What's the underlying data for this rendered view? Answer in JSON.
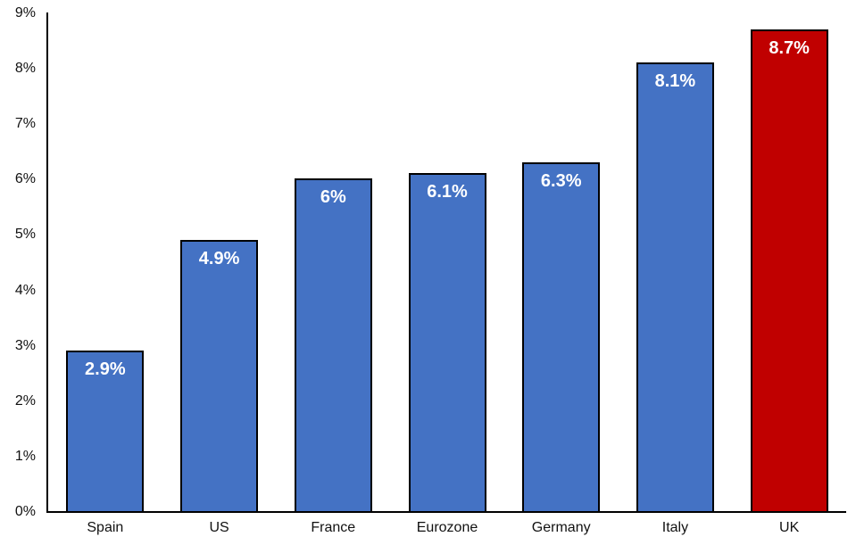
{
  "chart_data": {
    "type": "bar",
    "title": "",
    "xlabel": "",
    "ylabel": "",
    "categories": [
      "Spain",
      "US",
      "France",
      "Eurozone",
      "Germany",
      "Italy",
      "UK"
    ],
    "values": [
      2.9,
      4.9,
      6.0,
      6.1,
      6.3,
      8.1,
      8.7
    ],
    "data_labels": [
      "2.9%",
      "4.9%",
      "6%",
      "6.1%",
      "6.3%",
      "8.1%",
      "8.7%"
    ],
    "bar_colors": [
      "#4472C4",
      "#4472C4",
      "#4472C4",
      "#4472C4",
      "#4472C4",
      "#4472C4",
      "#C00000"
    ],
    "bar_border_color": "#000000",
    "data_label_color": "#FFFFFF",
    "yticks": [
      "0%",
      "1%",
      "2%",
      "3%",
      "4%",
      "5%",
      "6%",
      "7%",
      "8%",
      "9%"
    ],
    "ylim": [
      0,
      9
    ],
    "grid": false,
    "legend": false,
    "axis_color": "#000000",
    "background_color": "#FFFFFF"
  }
}
